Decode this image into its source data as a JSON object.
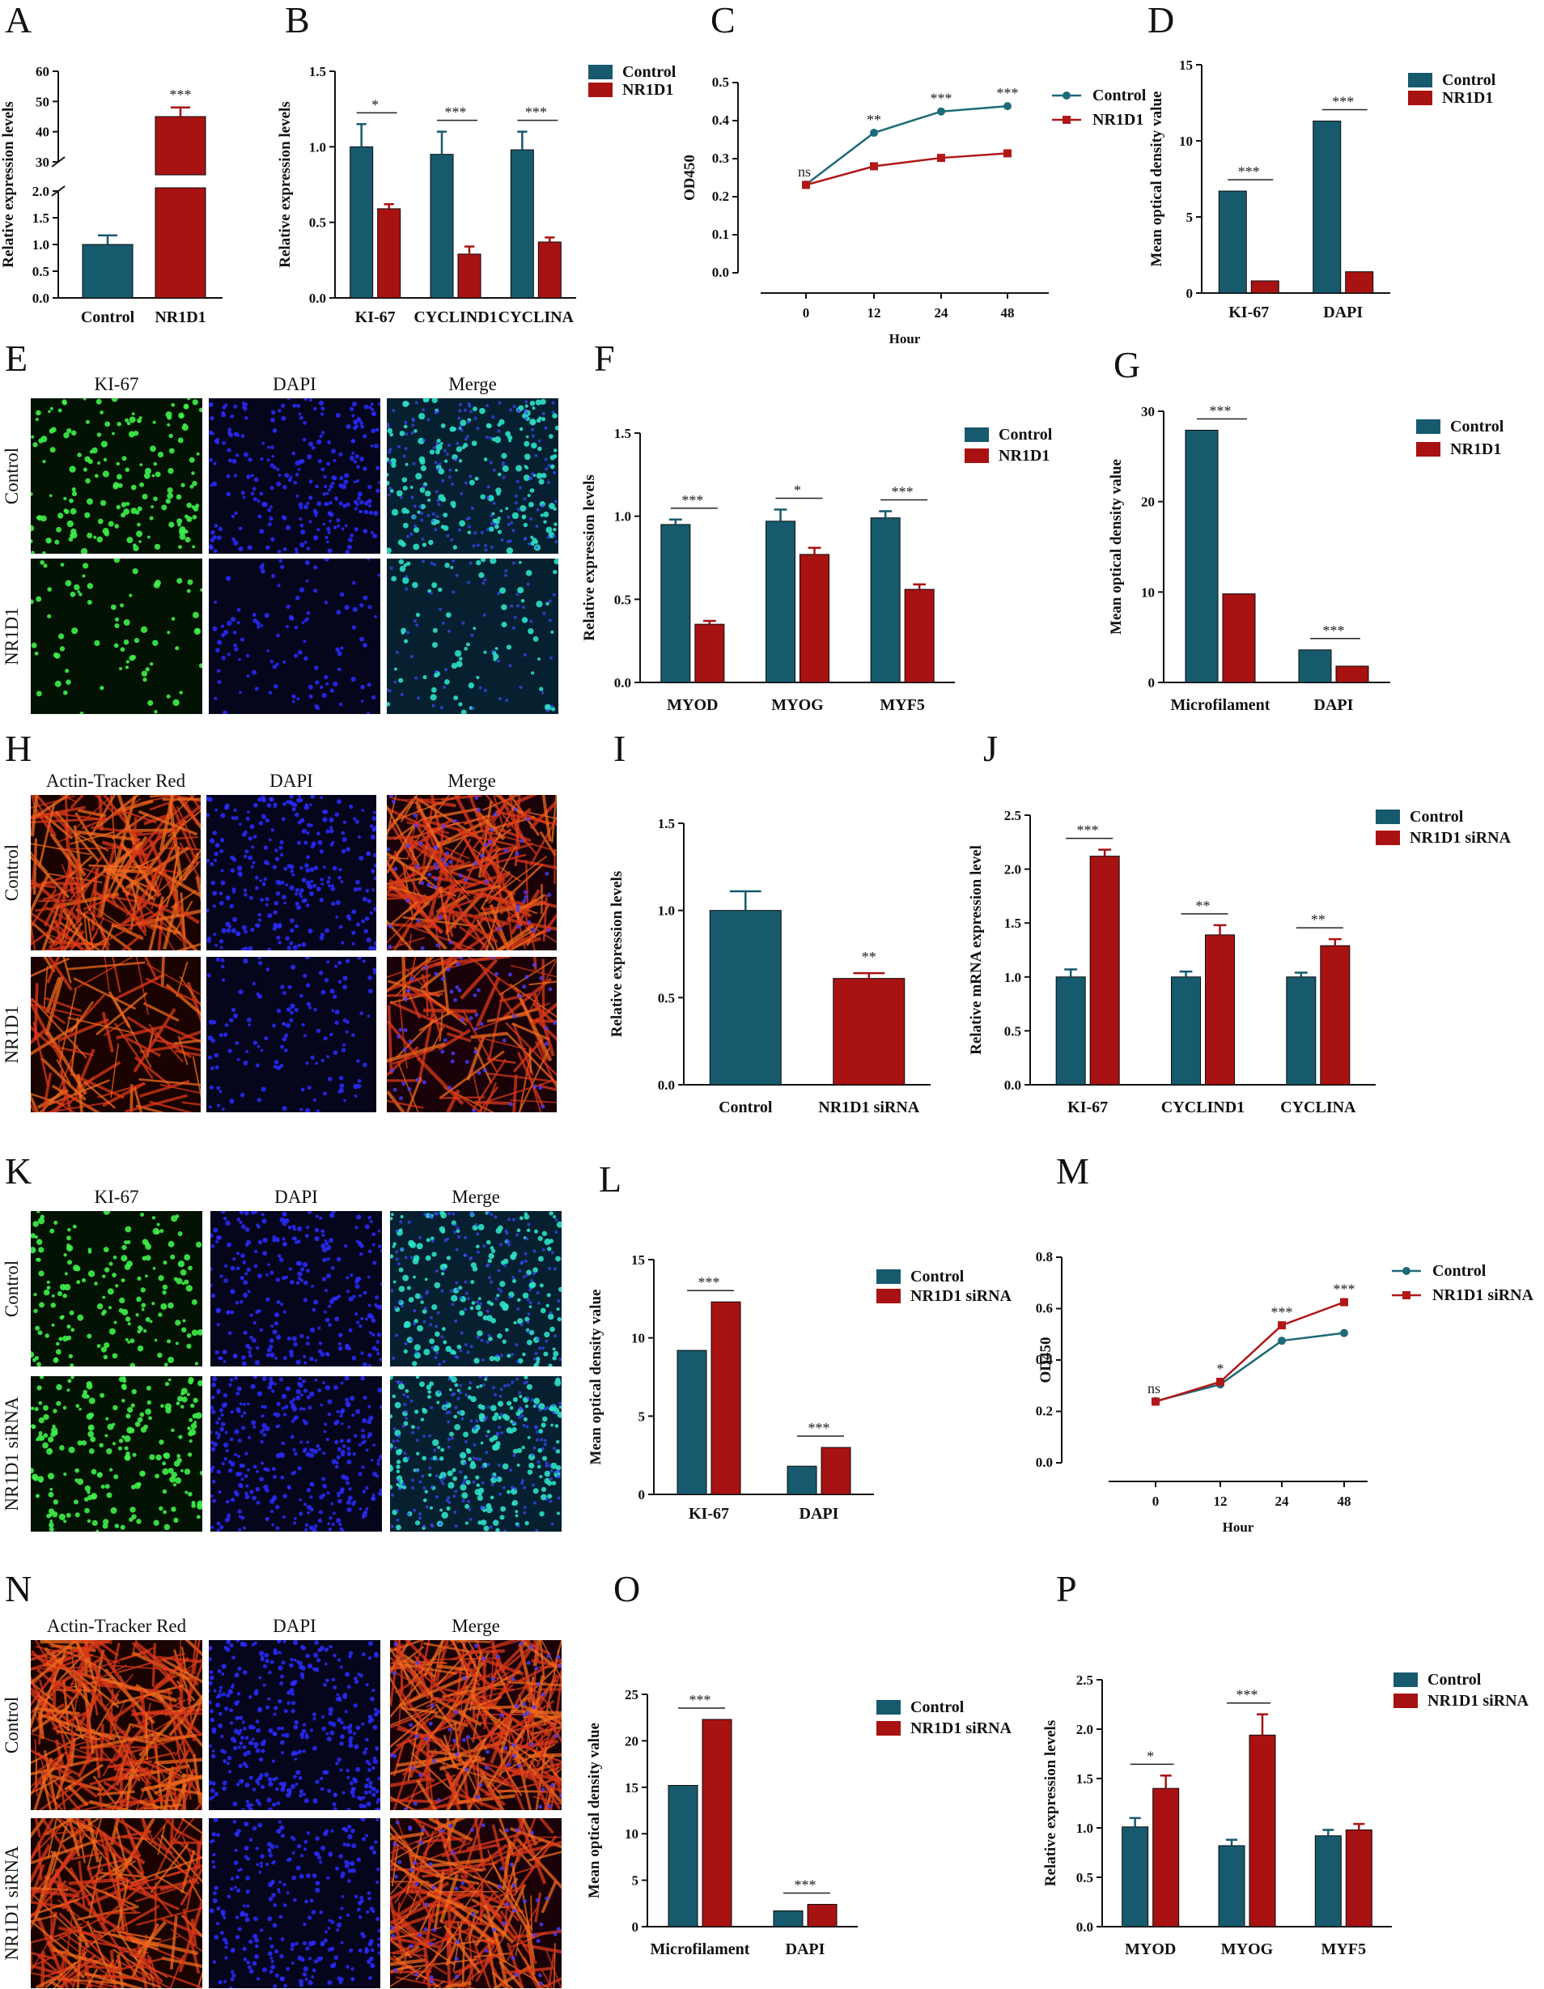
{
  "colors": {
    "control": "#175a6e",
    "nr1d1": "#a81212",
    "axis": "#111111",
    "line_control": "#1e6a78",
    "line_nr1d1": "#b01818"
  },
  "chart_data": [
    {
      "id": "A",
      "panel": "A",
      "type": "bar",
      "broken_axis": true,
      "categories": [
        "Control",
        "NR1D1"
      ],
      "values": [
        1.0,
        45.0
      ],
      "errors": [
        0.17,
        3.0
      ],
      "significance": [
        "",
        "***"
      ],
      "ylabel": "Relative expression levels",
      "yticks": [
        "0.0",
        "0.5",
        "1.0",
        "1.5",
        "2.0",
        "30",
        "40",
        "50",
        "60"
      ]
    },
    {
      "id": "B",
      "panel": "B",
      "type": "bar",
      "categories": [
        "KI-67",
        "CYCLIND1",
        "CYCLINA"
      ],
      "series": [
        {
          "name": "Control",
          "values": [
            1.0,
            0.95,
            0.98
          ],
          "errors": [
            0.15,
            0.15,
            0.12
          ]
        },
        {
          "name": "NR1D1",
          "values": [
            0.59,
            0.29,
            0.37
          ],
          "errors": [
            0.03,
            0.05,
            0.03
          ]
        }
      ],
      "significance": [
        "*",
        "***",
        "***"
      ],
      "ylabel": "Relative expression levels",
      "ylim": [
        0,
        1.5
      ],
      "yticks": [
        "0.0",
        "0.5",
        "1.0",
        "1.5"
      ],
      "legend_position": "top-right"
    },
    {
      "id": "C",
      "panel": "C",
      "type": "line",
      "x": [
        "0",
        "12",
        "24",
        "48"
      ],
      "series": [
        {
          "name": "Control",
          "values": [
            0.232,
            0.368,
            0.424,
            0.438
          ]
        },
        {
          "name": "NR1D1",
          "values": [
            0.231,
            0.28,
            0.302,
            0.314
          ]
        }
      ],
      "significance": [
        "ns",
        "**",
        "***",
        "***"
      ],
      "xlabel": "Hour",
      "ylabel": "OD450",
      "ylim": [
        0,
        0.5
      ],
      "yticks": [
        "0.0",
        "0.1",
        "0.2",
        "0.3",
        "0.4",
        "0.5"
      ],
      "legend_position": "top-right"
    },
    {
      "id": "D",
      "panel": "D",
      "type": "bar",
      "categories": [
        "KI-67",
        "DAPI"
      ],
      "series": [
        {
          "name": "Control",
          "values": [
            6.7,
            11.3
          ]
        },
        {
          "name": "NR1D1",
          "values": [
            0.8,
            1.4
          ]
        }
      ],
      "significance": [
        "***",
        "***"
      ],
      "ylabel": "Mean optical density value",
      "ylim": [
        0,
        15
      ],
      "yticks": [
        "0",
        "5",
        "10",
        "15"
      ],
      "legend_position": "top-right"
    },
    {
      "id": "F",
      "panel": "F",
      "type": "bar",
      "categories": [
        "MYOD",
        "MYOG",
        "MYF5"
      ],
      "series": [
        {
          "name": "Control",
          "values": [
            0.95,
            0.97,
            0.99
          ],
          "errors": [
            0.03,
            0.07,
            0.04
          ]
        },
        {
          "name": "NR1D1",
          "values": [
            0.35,
            0.77,
            0.56
          ],
          "errors": [
            0.02,
            0.04,
            0.03
          ]
        }
      ],
      "significance": [
        "***",
        "*",
        "***"
      ],
      "ylabel": "Relative expression levels",
      "ylim": [
        0,
        1.5
      ],
      "yticks": [
        "0.0",
        "0.5",
        "1.0",
        "1.5"
      ],
      "legend_position": "top-right"
    },
    {
      "id": "G",
      "panel": "G",
      "type": "bar",
      "categories": [
        "Microfilament",
        "DAPI"
      ],
      "series": [
        {
          "name": "Control",
          "values": [
            27.9,
            3.6
          ]
        },
        {
          "name": "NR1D1",
          "values": [
            9.8,
            1.8
          ]
        }
      ],
      "significance": [
        "***",
        "***"
      ],
      "ylabel": "Mean optical density value",
      "ylim": [
        0,
        30
      ],
      "yticks": [
        "0",
        "10",
        "20",
        "30"
      ],
      "legend_position": "top-right"
    },
    {
      "id": "I",
      "panel": "I",
      "type": "bar",
      "categories": [
        "Control",
        "NR1D1 siRNA"
      ],
      "values": [
        1.0,
        0.61
      ],
      "errors": [
        0.11,
        0.03
      ],
      "significance": [
        "",
        "**"
      ],
      "ylabel": "Relative expression levels",
      "ylim": [
        0,
        1.5
      ],
      "yticks": [
        "0.0",
        "0.5",
        "1.0",
        "1.5"
      ]
    },
    {
      "id": "J",
      "panel": "J",
      "type": "bar",
      "categories": [
        "KI-67",
        "CYCLIND1",
        "CYCLINA"
      ],
      "series": [
        {
          "name": "Control",
          "values": [
            1.0,
            1.0,
            1.0
          ],
          "errors": [
            0.07,
            0.05,
            0.04
          ]
        },
        {
          "name": "NR1D1 siRNA",
          "values": [
            2.12,
            1.39,
            1.29
          ],
          "errors": [
            0.06,
            0.09,
            0.06
          ]
        }
      ],
      "significance": [
        "***",
        "**",
        "**"
      ],
      "ylabel": "Relative mRNA expression level",
      "ylim": [
        0,
        2.5
      ],
      "yticks": [
        "0.0",
        "0.5",
        "1.0",
        "1.5",
        "2.0",
        "2.5"
      ],
      "legend_position": "top-right"
    },
    {
      "id": "L",
      "panel": "L",
      "type": "bar",
      "categories": [
        "KI-67",
        "DAPI"
      ],
      "series": [
        {
          "name": "Control",
          "values": [
            9.2,
            1.8
          ]
        },
        {
          "name": "NR1D1 siRNA",
          "values": [
            12.3,
            3.0
          ]
        }
      ],
      "significance": [
        "***",
        "***"
      ],
      "ylabel": "Mean optical density value",
      "ylim": [
        0,
        15
      ],
      "yticks": [
        "0",
        "5",
        "10",
        "15"
      ],
      "legend_position": "top-right"
    },
    {
      "id": "M",
      "panel": "M",
      "type": "line",
      "x": [
        "0",
        "12",
        "24",
        "48"
      ],
      "series": [
        {
          "name": "Control",
          "values": [
            0.24,
            0.305,
            0.475,
            0.505
          ]
        },
        {
          "name": "NR1D1 siRNA",
          "values": [
            0.238,
            0.315,
            0.535,
            0.625
          ]
        }
      ],
      "significance": [
        "ns",
        "*",
        "***",
        "***"
      ],
      "xlabel": "Hour",
      "ylabel": "OD450",
      "ylim": [
        0,
        0.8
      ],
      "yticks": [
        "0.0",
        "0.2",
        "0.4",
        "0.6",
        "0.8"
      ],
      "legend_position": "top-right"
    },
    {
      "id": "O",
      "panel": "O",
      "type": "bar",
      "categories": [
        "Microfilament",
        "DAPI"
      ],
      "series": [
        {
          "name": "Control",
          "values": [
            15.2,
            1.7
          ]
        },
        {
          "name": "NR1D1 siRNA",
          "values": [
            22.3,
            2.4
          ]
        }
      ],
      "significance": [
        "***",
        "***"
      ],
      "ylabel": "Mean optical density value",
      "ylim": [
        0,
        25
      ],
      "yticks": [
        "0",
        "5",
        "10",
        "15",
        "20",
        "25"
      ],
      "legend_position": "top-right"
    },
    {
      "id": "P",
      "panel": "P",
      "type": "bar",
      "categories": [
        "MYOD",
        "MYOG",
        "MYF5"
      ],
      "series": [
        {
          "name": "Control",
          "values": [
            1.01,
            0.82,
            0.92
          ],
          "errors": [
            0.09,
            0.06,
            0.06
          ]
        },
        {
          "name": "NR1D1 siRNA",
          "values": [
            1.4,
            1.94,
            0.98
          ],
          "errors": [
            0.13,
            0.21,
            0.06
          ]
        }
      ],
      "significance": [
        "*",
        "***",
        ""
      ],
      "ylabel": "Relative expression levels",
      "ylim": [
        0,
        2.5
      ],
      "yticks": [
        "0.0",
        "0.5",
        "1.0",
        "1.5",
        "2.0",
        "2.5"
      ],
      "legend_position": "top-right"
    }
  ],
  "image_panels": [
    {
      "panel": "E",
      "columns": [
        "KI-67",
        "DAPI",
        "Merge"
      ],
      "rows": [
        "Control",
        "NR1D1"
      ],
      "stain": "ki67"
    },
    {
      "panel": "H",
      "columns": [
        "Actin-Tracker Red",
        "DAPI",
        "Merge"
      ],
      "rows": [
        "Control",
        "NR1D1"
      ],
      "stain": "actin"
    },
    {
      "panel": "K",
      "columns": [
        "KI-67",
        "DAPI",
        "Merge"
      ],
      "rows": [
        "Control",
        "NR1D1 siRNA"
      ],
      "stain": "ki67"
    },
    {
      "panel": "N",
      "columns": [
        "Actin-Tracker Red",
        "DAPI",
        "Merge"
      ],
      "rows": [
        "Control",
        "NR1D1 siRNA"
      ],
      "stain": "actin"
    }
  ]
}
